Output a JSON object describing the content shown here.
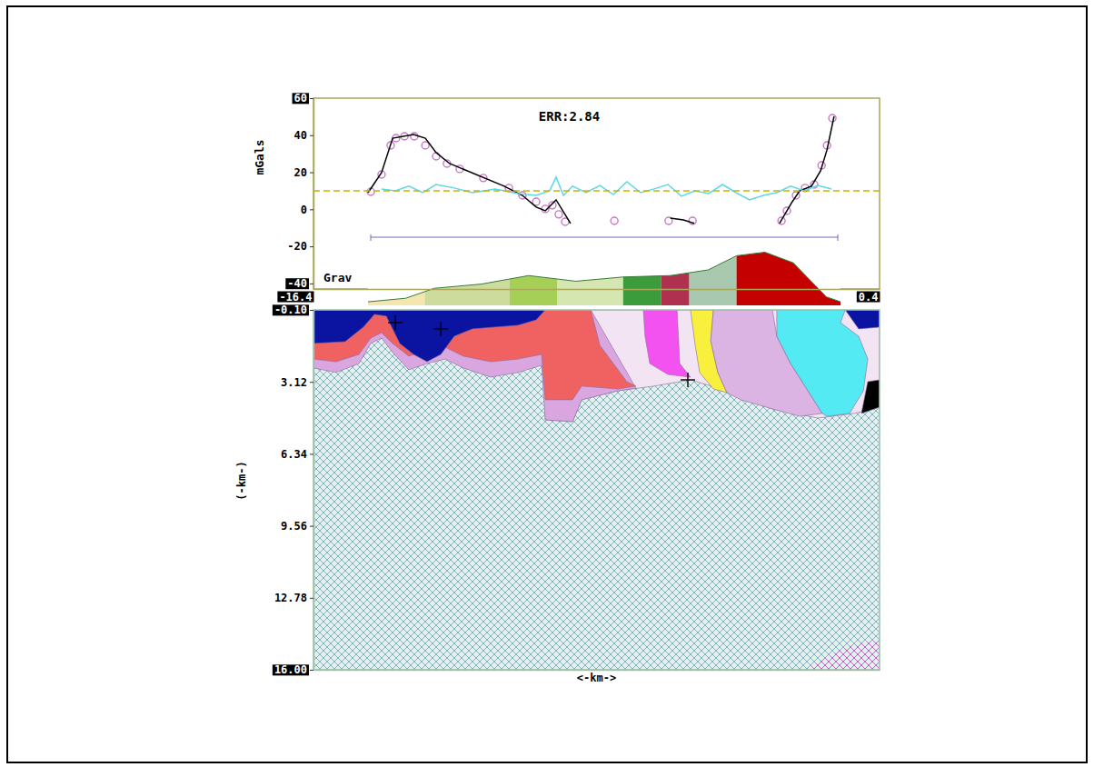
{
  "chart_data": [
    {
      "type": "line",
      "title": "ERR:2.84",
      "label": "Grav",
      "y_label": "mGals",
      "xlim": [
        -16.4,
        0.4
      ],
      "xticks": [
        -16.4,
        0.4
      ],
      "ylim": [
        -43,
        60
      ],
      "yticks": [
        60,
        40,
        20,
        0,
        -20,
        -40
      ],
      "series": [
        {
          "type": "scatter",
          "marker": "circle",
          "color": "#c878c8",
          "x": [
            -14.7,
            -14.38,
            -14.11,
            -13.95,
            -13.7,
            -13.41,
            -13.08,
            -12.76,
            -12.44,
            -12.06,
            -11.36,
            -10.6,
            -10.2,
            -9.79,
            -9.52,
            -9.31,
            -9.12,
            -8.93,
            -7.47,
            -5.86,
            -5.15,
            -2.51,
            -2.35,
            -2.08,
            -1.81,
            -1.54,
            -1.32,
            -1.16,
            -1.0
          ],
          "values": [
            9.5,
            18.8,
            34.5,
            38.4,
            39.4,
            39.4,
            34.5,
            28.6,
            24.7,
            21.8,
            16.9,
            11.5,
            7.5,
            4.1,
            0.2,
            2.2,
            -2.7,
            -6.7,
            -6.2,
            -6.2,
            -6.2,
            -6.2,
            -0.8,
            7.5,
            11.5,
            13.4,
            23.7,
            34.5,
            49.2
          ]
        },
        {
          "type": "line",
          "color": "#000000",
          "x": [
            -14.78,
            -14.38,
            -14.05,
            -13.43,
            -13.08,
            -12.76,
            -12.36,
            -10.74,
            -10.2,
            -9.79,
            -9.52,
            -9.2,
            -8.77,
            -8.5,
            -5.81,
            -5.42,
            -5.1,
            -4.0,
            -2.57,
            -2.19,
            -1.97,
            -1.62,
            -1.35,
            -1.16,
            -0.95
          ],
          "values": [
            9.0,
            19.8,
            38.4,
            40.4,
            38.4,
            30.6,
            24.7,
            12.5,
            7.5,
            1.2,
            -0.8,
            5.1,
            -7.6,
            null,
            -4.7,
            -5.7,
            -7.6,
            null,
            -7.6,
            4.1,
            10.0,
            12.5,
            20.8,
            32.1,
            50.2
          ]
        },
        {
          "type": "line",
          "color": "#5cd8e8",
          "x": [
            -14.38,
            -13.97,
            -13.57,
            -13.16,
            -12.76,
            -12.22,
            -11.68,
            -11.01,
            -10.33,
            -9.79,
            -9.39,
            -9.2,
            -8.98,
            -8.71,
            -8.31,
            -7.9,
            -7.5,
            -7.1,
            -6.69,
            -6.29,
            -5.88,
            -5.48,
            -5.07,
            -4.67,
            -4.26,
            -3.86,
            -3.46,
            -3.05,
            -2.65,
            -2.24,
            -1.84,
            -1.43,
            -1.03
          ],
          "values": [
            11.0,
            10.0,
            12.5,
            9.0,
            13.4,
            11.5,
            9.0,
            11.0,
            8.5,
            7.5,
            10.0,
            17.4,
            7.5,
            12.5,
            9.0,
            12.9,
            8.0,
            14.9,
            9.0,
            11.0,
            13.4,
            7.1,
            10.0,
            8.5,
            13.4,
            9.0,
            5.1,
            7.5,
            9.0,
            12.5,
            10.0,
            12.9,
            11.0
          ]
        },
        {
          "type": "line",
          "line_style": "dashed",
          "color": "#c8b400",
          "x": [
            -16.4,
            0.4
          ],
          "values": [
            10,
            10
          ]
        }
      ]
    },
    {
      "type": "section",
      "tick_labels": "y",
      "x_label": "<-km->",
      "y_label": "(-km-)",
      "xlim": [
        -16.4,
        0.4
      ],
      "ylim": [
        -0.1,
        16
      ],
      "yticks": [
        {
          "value": -0.1,
          "label": "-0.10"
        },
        3.12,
        6.34,
        9.56,
        12.78,
        {
          "value": 16,
          "label": "16.00"
        }
      ],
      "bodies": [
        {
          "type": "hatch",
          "color": "#7fb3bb",
          "x": [
            -16.4,
            0.4,
            0.4,
            -16.4
          ],
          "y": [
            -0.1,
            -0.1,
            16,
            16
          ]
        },
        {
          "type": "fill",
          "color": "#f2e4f2",
          "x": [
            -9.52,
            0.4,
            0.4,
            -0.35,
            -1.43,
            -2.78,
            -4.13,
            -5.21,
            -6.29,
            -7.37,
            -8.44,
            -8.71,
            -9.52
          ],
          "y": [
            -0.1,
            -0.1,
            4.25,
            4.53,
            4.74,
            4.33,
            3.52,
            3.03,
            3.31,
            3.52,
            3.92,
            4.9,
            4.82
          ]
        },
        {
          "type": "fill",
          "color": "#d9a6e0",
          "x": [
            -16.4,
            -8.17,
            -6.83,
            -7.37,
            -8.44,
            -8.71,
            -9.52,
            -9.63,
            -10.33,
            -11.14,
            -11.95,
            -12.49,
            -13.03,
            -13.57,
            -14.05,
            -14.38,
            -14.7,
            -15.05,
            -15.73,
            -16.4
          ],
          "y": [
            -0.1,
            -0.1,
            3.4,
            3.52,
            3.92,
            4.9,
            4.82,
            2.38,
            2.7,
            2.91,
            2.5,
            2.1,
            2.3,
            2.58,
            1.81,
            1.16,
            1.4,
            2.3,
            2.7,
            2.5
          ]
        },
        {
          "type": "fill",
          "color": "#f06262",
          "x": [
            -16.4,
            -8.17,
            -7.9,
            -7.1,
            -6.83,
            -7.37,
            -8.44,
            -8.71,
            -9.52,
            -9.63,
            -10.33,
            -11.14,
            -11.95,
            -12.49,
            -13.03,
            -13.57,
            -14.05,
            -14.38,
            -14.7,
            -15.05,
            -15.73,
            -16.4
          ],
          "y": [
            -0.1,
            -0.1,
            1.49,
            3.11,
            3.31,
            3.44,
            3.31,
            3.92,
            3.92,
            1.89,
            2.1,
            2.22,
            1.97,
            1.57,
            1.69,
            1.97,
            1.4,
            0.92,
            1.16,
            1.89,
            2.22,
            2.1
          ]
        },
        {
          "type": "fill",
          "color": "#0a14a0",
          "x": [
            -16.4,
            -9.52,
            -9.79,
            -10.33,
            -11.01,
            -11.68,
            -12.22,
            -12.62,
            -13.03,
            -13.43,
            -13.84,
            -14.24,
            -14.59,
            -14.92,
            -15.46,
            -16.4
          ],
          "y": [
            -0.1,
            -0.1,
            0.35,
            0.59,
            0.67,
            0.75,
            1.08,
            1.89,
            2.22,
            1.89,
            1.4,
            0.18,
            0.1,
            0.67,
            1.32,
            1.4
          ]
        },
        {
          "type": "fill",
          "color": "#f452f0",
          "x": [
            -6.61,
            -5.61,
            -5.53,
            -5.21,
            -5.88,
            -6.42,
            -6.56
          ],
          "y": [
            -0.1,
            -0.1,
            2.3,
            2.91,
            2.79,
            2.3,
            1.08
          ]
        },
        {
          "type": "fill",
          "color": "#f8f03c",
          "x": [
            -5.21,
            -4.53,
            -4.61,
            -4.4,
            -4.13,
            -4.53,
            -4.94,
            -5.07
          ],
          "y": [
            -0.1,
            -0.1,
            1.28,
            2.7,
            3.6,
            3.44,
            2.7,
            1.49
          ]
        },
        {
          "type": "fill",
          "color": "#dcb4e4",
          "x": [
            -4.53,
            -2.78,
            -2.65,
            -2.24,
            -1.3,
            -1.97,
            -2.78,
            -3.72,
            -4.13,
            -4.4,
            -4.61
          ],
          "y": [
            -0.1,
            -0.1,
            1.08,
            2.3,
            4.53,
            4.66,
            4.33,
            3.92,
            3.6,
            2.7,
            1.28
          ]
        },
        {
          "type": "fill",
          "color": "#54eaf4",
          "x": [
            -2.65,
            -0.62,
            -0.76,
            -0.22,
            0.05,
            -0.08,
            -0.49,
            -1.16,
            -1.3,
            -2.24,
            -2.65
          ],
          "y": [
            -0.1,
            -0.1,
            0.47,
            1.08,
            2.1,
            3.52,
            4.53,
            4.66,
            4.53,
            2.3,
            1.08
          ]
        },
        {
          "type": "fill",
          "color": "#0a14a0",
          "x": [
            -0.62,
            0.4,
            0.4,
            -0.22
          ],
          "y": [
            -0.1,
            -0.1,
            0.67,
            0.75
          ]
        },
        {
          "type": "fill",
          "color": "#000000",
          "x": [
            0.05,
            0.4,
            0.4,
            -0.14
          ],
          "y": [
            3.11,
            3.03,
            4.25,
            4.53
          ]
        },
        {
          "type": "hatch",
          "color": "#c060c0",
          "x": [
            -1.84,
            0.4,
            0.4,
            -0.62
          ],
          "y": [
            16.0,
            16.0,
            14.62,
            14.98
          ]
        }
      ],
      "points": {
        "marker": "cross",
        "x": [
          -13.97,
          -12.62,
          -5.29
        ],
        "y": [
          0.47,
          0.75,
          3.03
        ]
      }
    }
  ]
}
